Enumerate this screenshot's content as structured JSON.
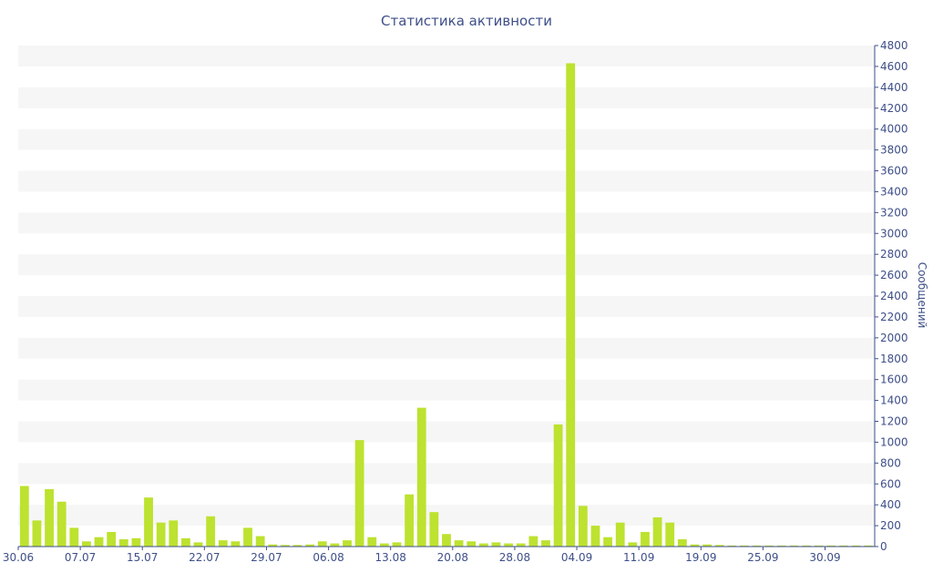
{
  "chart_data": {
    "type": "bar",
    "title": "Статистика активности",
    "ylabel": "Сообщений",
    "xlabel": "",
    "ylim": [
      0,
      4800
    ],
    "y_axis_side": "right",
    "y_ticks": [
      0,
      200,
      400,
      600,
      800,
      1000,
      1200,
      1400,
      1600,
      1800,
      2000,
      2200,
      2400,
      2600,
      2800,
      3000,
      3200,
      3400,
      3600,
      3800,
      4000,
      4200,
      4400,
      4600,
      4800
    ],
    "x_tick_labels": [
      {
        "label": "30.06",
        "index": 0
      },
      {
        "label": "07.07",
        "index": 5
      },
      {
        "label": "15.07",
        "index": 10
      },
      {
        "label": "22.07",
        "index": 15
      },
      {
        "label": "29.07",
        "index": 20
      },
      {
        "label": "06.08",
        "index": 25
      },
      {
        "label": "13.08",
        "index": 30
      },
      {
        "label": "20.08",
        "index": 35
      },
      {
        "label": "28.08",
        "index": 40
      },
      {
        "label": "04.09",
        "index": 45
      },
      {
        "label": "11.09",
        "index": 50
      },
      {
        "label": "19.09",
        "index": 55
      },
      {
        "label": "25.09",
        "index": 60
      },
      {
        "label": "30.09",
        "index": 65
      }
    ],
    "grid": "alternating horizontal bands",
    "bar_color": "#bde22f",
    "values": [
      580,
      250,
      550,
      430,
      180,
      50,
      90,
      140,
      70,
      80,
      470,
      230,
      250,
      80,
      40,
      290,
      60,
      50,
      180,
      100,
      20,
      15,
      15,
      20,
      50,
      30,
      60,
      1020,
      90,
      30,
      40,
      500,
      1330,
      330,
      120,
      60,
      50,
      30,
      40,
      30,
      30,
      100,
      60,
      1170,
      4630,
      390,
      200,
      90,
      230,
      40,
      140,
      280,
      230,
      70,
      20,
      20,
      15,
      10,
      10,
      10,
      10,
      10,
      10,
      10,
      10,
      10,
      10,
      10,
      10
    ]
  }
}
